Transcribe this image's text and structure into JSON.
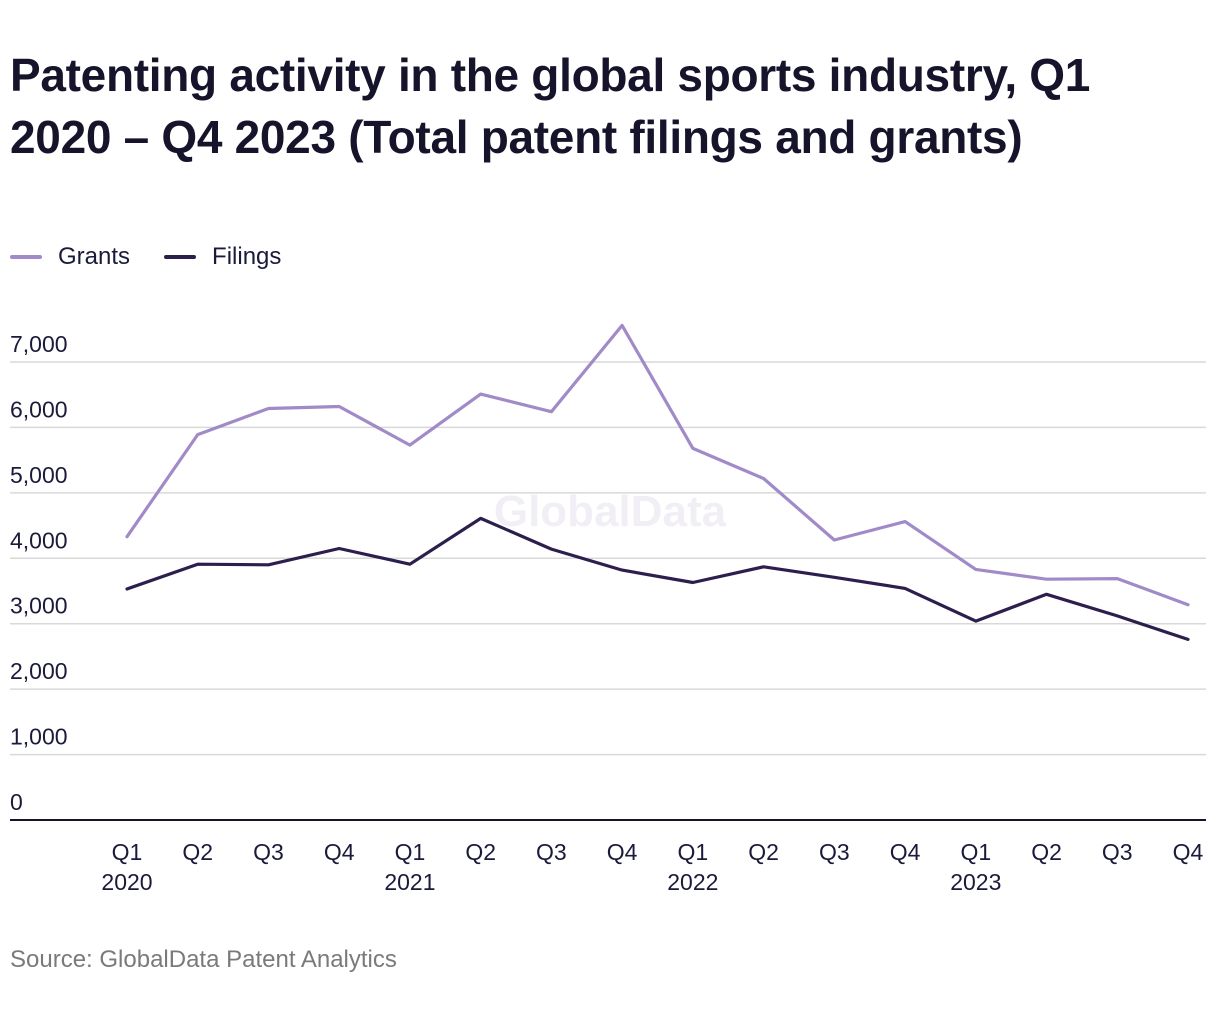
{
  "title": "Patenting activity in the global sports industry, Q1 2020 – Q4 2023 (Total patent filings and grants)",
  "source": "Source: GlobalData Patent Analytics",
  "watermark": "GlobalData",
  "colors": {
    "grants": "#a18ac8",
    "filings": "#2c1f4d",
    "grid": "#d9d9d9",
    "axis": "#16142b",
    "text": "#1a1a3a"
  },
  "chart_data": {
    "type": "line",
    "x": [
      "Q1",
      "Q2",
      "Q3",
      "Q4",
      "Q1",
      "Q2",
      "Q3",
      "Q4",
      "Q1",
      "Q2",
      "Q3",
      "Q4",
      "Q1",
      "Q2",
      "Q3",
      "Q4"
    ],
    "year_labels": [
      "2020",
      "",
      "",
      "",
      "2021",
      "",
      "",
      "",
      "2022",
      "",
      "",
      "",
      "2023",
      "",
      "",
      ""
    ],
    "series": [
      {
        "name": "Grants",
        "values": [
          4330,
          5890,
          6290,
          6320,
          5730,
          6510,
          6240,
          7560,
          5680,
          5220,
          4280,
          4560,
          3830,
          3680,
          3690,
          3290
        ]
      },
      {
        "name": "Filings",
        "values": [
          3530,
          3910,
          3900,
          4150,
          3910,
          4610,
          4140,
          3820,
          3630,
          3870,
          3710,
          3540,
          3040,
          3450,
          3120,
          2760
        ]
      }
    ],
    "yticks": [
      0,
      1000,
      2000,
      3000,
      4000,
      5000,
      6000,
      7000
    ],
    "ytick_labels": [
      "0",
      "1,000",
      "2,000",
      "3,000",
      "4,000",
      "5,000",
      "6,000",
      "7,000"
    ],
    "ylim": [
      0,
      7000
    ],
    "grid": true,
    "legend_position": "top-left"
  }
}
